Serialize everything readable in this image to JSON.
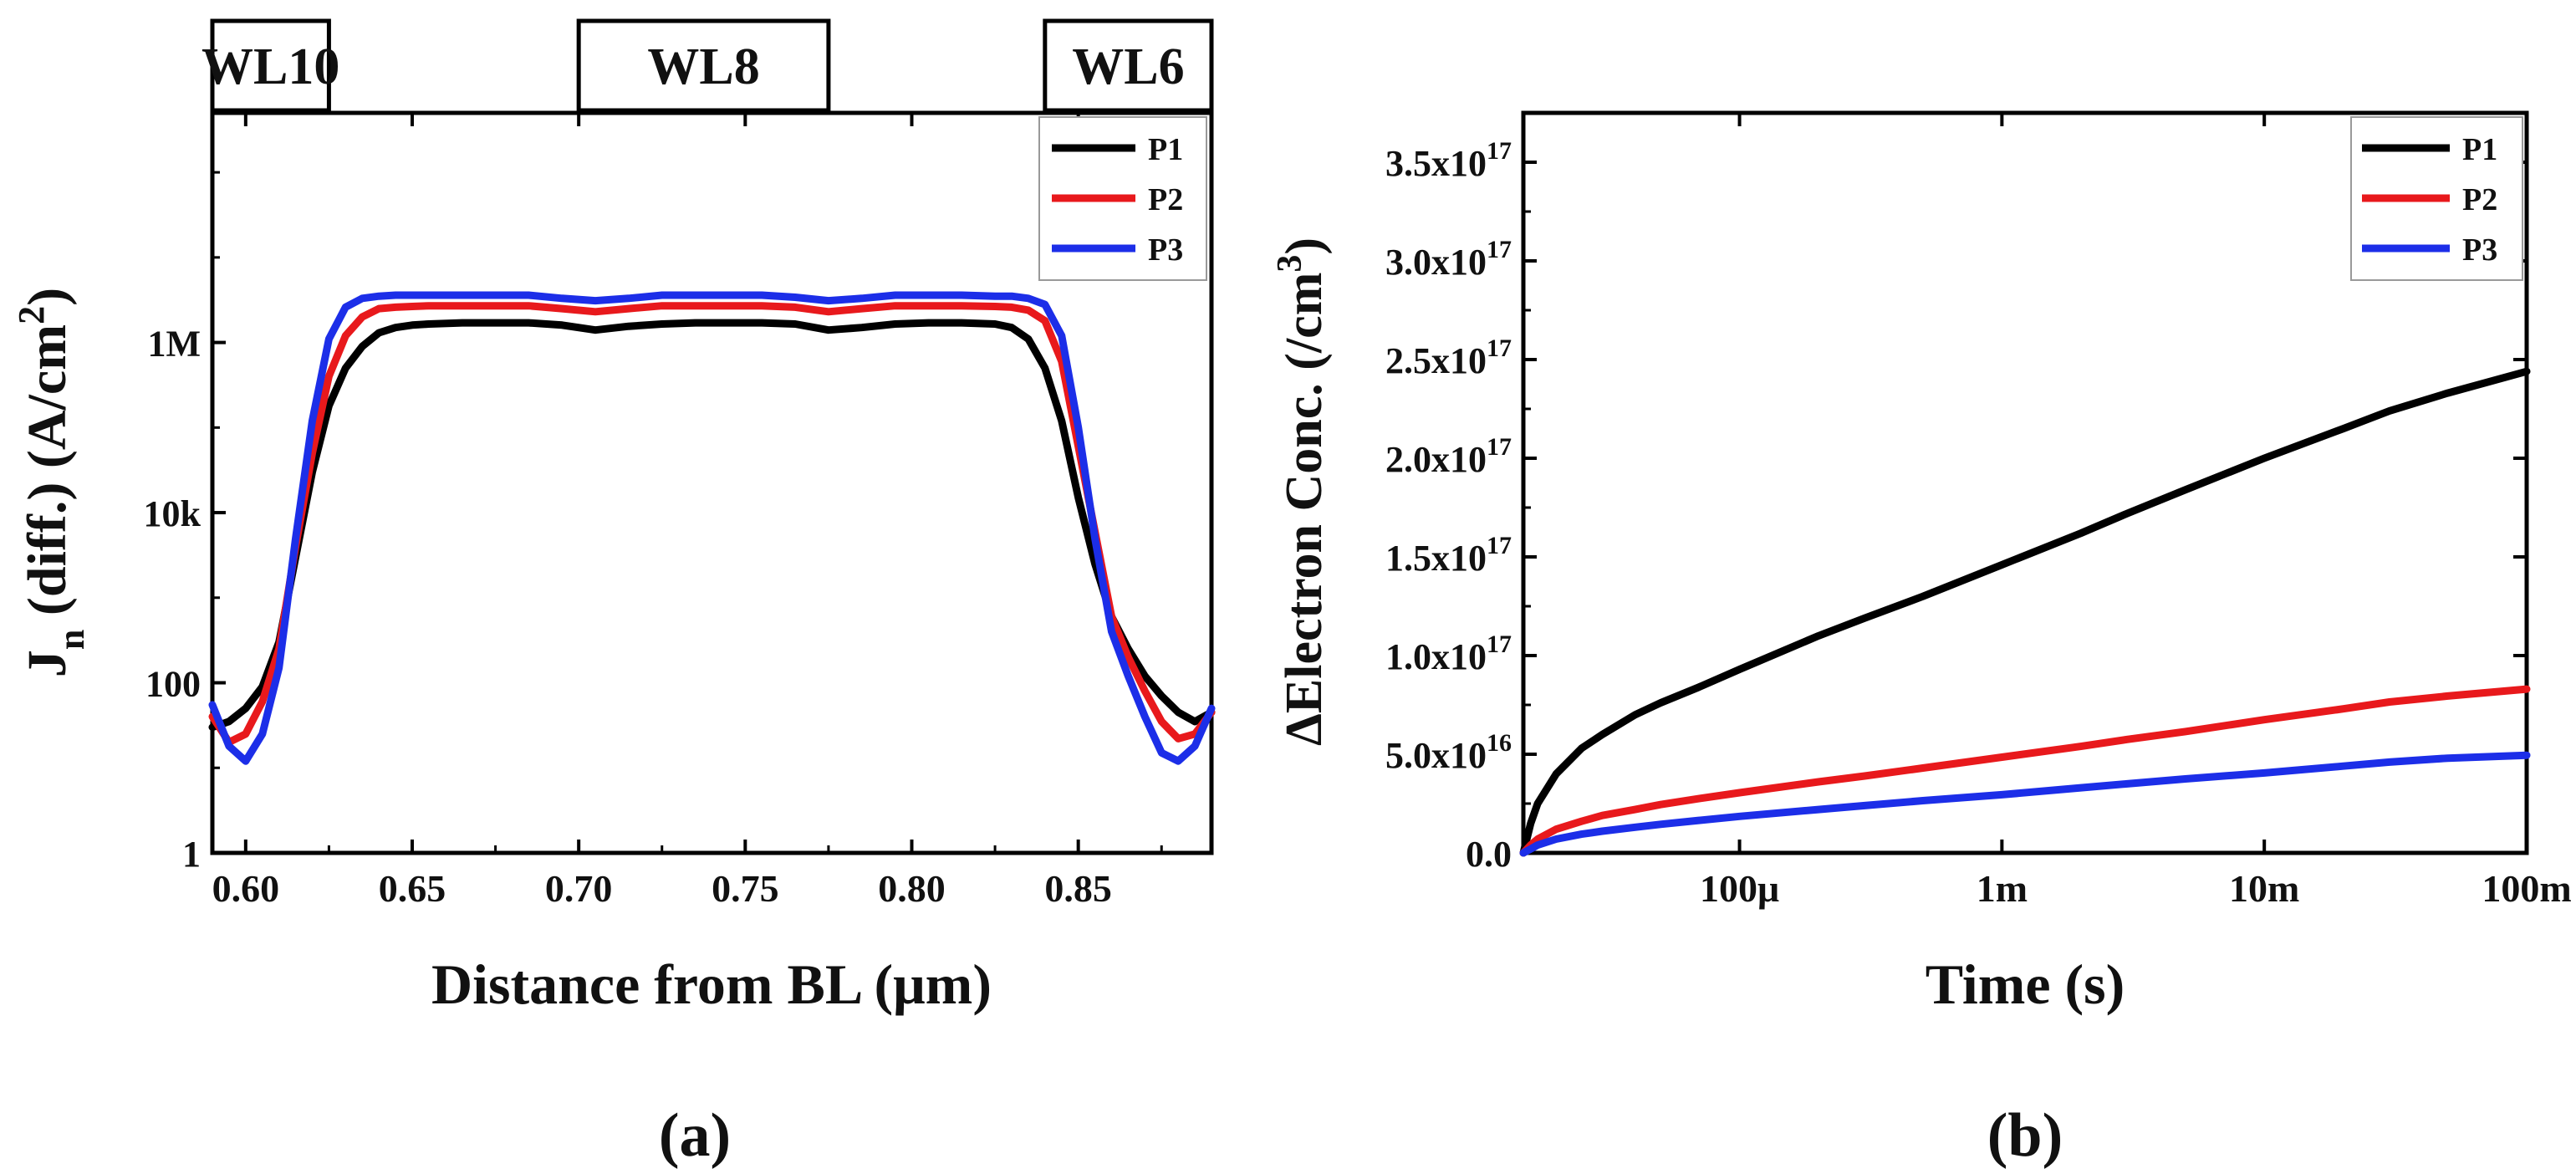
{
  "figure": {
    "panels": [
      "(a)",
      "(b)"
    ]
  },
  "chart_data": [
    {
      "type": "line",
      "panel_label": "(a)",
      "xlabel": "Distance from BL (μm)",
      "ylabel_main": "J",
      "ylabel_sub": "n",
      "ylabel_rest": " (diff.) (A/cm",
      "ylabel_sup": "2",
      "ylabel_close": ")",
      "xlim": [
        0.59,
        0.89
      ],
      "ylim": [
        1,
        500000000
      ],
      "yscale": "log",
      "xticks": [
        0.6,
        0.65,
        0.7,
        0.75,
        0.8,
        0.85
      ],
      "xtick_labels": [
        "0.60",
        "0.65",
        "0.70",
        "0.75",
        "0.80",
        "0.85"
      ],
      "yticks": [
        1,
        100,
        10000,
        1000000
      ],
      "ytick_labels": [
        "1",
        "100",
        "10k",
        "1M"
      ],
      "grid": false,
      "legend_position": "top-right",
      "wordline_labels": [
        {
          "label": "WL10",
          "x_from": 0.59,
          "x_to": 0.625
        },
        {
          "label": "WL8",
          "x_from": 0.7,
          "x_to": 0.775
        },
        {
          "label": "WL6",
          "x_from": 0.84,
          "x_to": 0.89
        }
      ],
      "series": [
        {
          "name": "P1",
          "color": "#000000",
          "x": [
            0.59,
            0.595,
            0.6,
            0.605,
            0.61,
            0.615,
            0.62,
            0.625,
            0.63,
            0.635,
            0.64,
            0.645,
            0.65,
            0.655,
            0.665,
            0.675,
            0.685,
            0.695,
            0.705,
            0.715,
            0.725,
            0.735,
            0.745,
            0.755,
            0.765,
            0.775,
            0.785,
            0.795,
            0.805,
            0.815,
            0.825,
            0.83,
            0.835,
            0.84,
            0.845,
            0.85,
            0.855,
            0.86,
            0.865,
            0.87,
            0.875,
            0.88,
            0.885,
            0.89
          ],
          "y": [
            30,
            35,
            50,
            90,
            300,
            3000,
            30000,
            180000,
            500000,
            900000,
            1300000,
            1500000,
            1600000,
            1650000,
            1700000,
            1700000,
            1700000,
            1600000,
            1400000,
            1550000,
            1650000,
            1700000,
            1700000,
            1700000,
            1650000,
            1400000,
            1500000,
            1650000,
            1700000,
            1700000,
            1650000,
            1500000,
            1100000,
            500000,
            120000,
            15000,
            2500,
            600,
            250,
            120,
            70,
            45,
            35,
            45
          ]
        },
        {
          "name": "P2",
          "color": "#e8191c",
          "x": [
            0.59,
            0.595,
            0.6,
            0.605,
            0.61,
            0.615,
            0.62,
            0.625,
            0.63,
            0.635,
            0.64,
            0.645,
            0.65,
            0.655,
            0.665,
            0.675,
            0.685,
            0.695,
            0.705,
            0.715,
            0.725,
            0.735,
            0.745,
            0.755,
            0.765,
            0.775,
            0.785,
            0.795,
            0.805,
            0.815,
            0.825,
            0.83,
            0.835,
            0.84,
            0.845,
            0.85,
            0.855,
            0.86,
            0.865,
            0.87,
            0.875,
            0.88,
            0.885,
            0.89
          ],
          "y": [
            40,
            20,
            25,
            60,
            250,
            4000,
            50000,
            400000,
            1200000,
            2000000,
            2500000,
            2600000,
            2650000,
            2700000,
            2700000,
            2700000,
            2700000,
            2500000,
            2300000,
            2500000,
            2700000,
            2700000,
            2700000,
            2700000,
            2600000,
            2300000,
            2500000,
            2700000,
            2700000,
            2700000,
            2650000,
            2600000,
            2400000,
            1800000,
            600000,
            60000,
            6000,
            600,
            200,
            80,
            35,
            22,
            25,
            45
          ]
        },
        {
          "name": "P3",
          "color": "#1c2ee8",
          "x": [
            0.59,
            0.595,
            0.6,
            0.605,
            0.61,
            0.615,
            0.62,
            0.625,
            0.63,
            0.635,
            0.64,
            0.645,
            0.65,
            0.655,
            0.665,
            0.675,
            0.685,
            0.695,
            0.705,
            0.715,
            0.725,
            0.735,
            0.745,
            0.755,
            0.765,
            0.775,
            0.785,
            0.795,
            0.805,
            0.815,
            0.825,
            0.83,
            0.835,
            0.84,
            0.845,
            0.85,
            0.855,
            0.86,
            0.865,
            0.87,
            0.875,
            0.88,
            0.885,
            0.89
          ],
          "y": [
            55,
            18,
            12,
            25,
            150,
            5000,
            120000,
            1100000,
            2600000,
            3300000,
            3500000,
            3600000,
            3600000,
            3600000,
            3600000,
            3600000,
            3600000,
            3300000,
            3100000,
            3300000,
            3600000,
            3600000,
            3600000,
            3600000,
            3400000,
            3100000,
            3300000,
            3600000,
            3600000,
            3600000,
            3500000,
            3500000,
            3300000,
            2800000,
            1200000,
            100000,
            5000,
            400,
            120,
            40,
            15,
            12,
            18,
            50
          ]
        }
      ]
    },
    {
      "type": "line",
      "panel_label": "(b)",
      "xlabel": "Time (s)",
      "ylabel_main": "ΔElectron Conc. (/cm",
      "ylabel_sup": "3",
      "ylabel_close": ")",
      "xscale": "log",
      "xlim": [
        1.5e-05,
        0.1
      ],
      "ylim": [
        0,
        3.75e+17
      ],
      "xticks": [
        0.0001,
        0.001,
        0.01,
        0.1
      ],
      "xtick_labels": [
        "100μ",
        "1m",
        "10m",
        "100m"
      ],
      "yticks": [
        0,
        5e+16,
        1e+17,
        1.5e+17,
        2e+17,
        2.5e+17,
        3e+17,
        3.5e+17
      ],
      "ytick_labels": [
        {
          "base": "0.0",
          "exp": ""
        },
        {
          "base": "5.0x10",
          "exp": "16"
        },
        {
          "base": "1.0x10",
          "exp": "17"
        },
        {
          "base": "1.5x10",
          "exp": "17"
        },
        {
          "base": "2.0x10",
          "exp": "17"
        },
        {
          "base": "2.5x10",
          "exp": "17"
        },
        {
          "base": "3.0x10",
          "exp": "17"
        },
        {
          "base": "3.5x10",
          "exp": "17"
        }
      ],
      "grid": false,
      "legend_position": "top-right",
      "series": [
        {
          "name": "P1",
          "color": "#000000",
          "x": [
            1.5e-05,
            1.6e-05,
            1.7e-05,
            2e-05,
            2.5e-05,
            3e-05,
            4e-05,
            5e-05,
            7e-05,
            0.0001,
            0.0002,
            0.0003,
            0.0005,
            0.001,
            0.002,
            0.003,
            0.005,
            0.01,
            0.02,
            0.03,
            0.05,
            0.1
          ],
          "y": [
            0,
            1.5e+16,
            2.5e+16,
            4e+16,
            5.3e+16,
            6e+16,
            7e+16,
            7.6e+16,
            8.4e+16,
            9.3e+16,
            1.1e+17,
            1.19e+17,
            1.3e+17,
            1.46e+17,
            1.62e+17,
            1.72e+17,
            1.84e+17,
            2e+17,
            2.15e+17,
            2.24e+17,
            2.33e+17,
            2.44e+17
          ]
        },
        {
          "name": "P2",
          "color": "#e8191c",
          "x": [
            1.5e-05,
            1.6e-05,
            1.7e-05,
            2e-05,
            2.5e-05,
            3e-05,
            4e-05,
            5e-05,
            7e-05,
            0.0001,
            0.0002,
            0.0003,
            0.0005,
            0.001,
            0.002,
            0.003,
            0.005,
            0.01,
            0.02,
            0.03,
            0.05,
            0.1
          ],
          "y": [
            0,
            4000000000000000.0,
            7000000000000000.0,
            1.2e+16,
            1.6e+16,
            1.9e+16,
            2.2e+16,
            2.45e+16,
            2.75e+16,
            3.05e+16,
            3.6e+16,
            3.9e+16,
            4.3e+16,
            4.85e+16,
            5.4e+16,
            5.75e+16,
            6.15e+16,
            6.75e+16,
            7.3e+16,
            7.65e+16,
            7.95e+16,
            8.3e+16
          ]
        },
        {
          "name": "P3",
          "color": "#1c2ee8",
          "x": [
            1.5e-05,
            1.6e-05,
            1.7e-05,
            2e-05,
            2.5e-05,
            3e-05,
            4e-05,
            5e-05,
            7e-05,
            0.0001,
            0.0002,
            0.0003,
            0.0005,
            0.001,
            0.002,
            0.003,
            0.005,
            0.01,
            0.02,
            0.03,
            0.05,
            0.1
          ],
          "y": [
            0,
            2000000000000000.0,
            4000000000000000.0,
            7000000000000000.0,
            9500000000000000.0,
            1.1e+16,
            1.3e+16,
            1.45e+16,
            1.65e+16,
            1.85e+16,
            2.2e+16,
            2.4e+16,
            2.65e+16,
            2.95e+16,
            3.3e+16,
            3.5e+16,
            3.75e+16,
            4.05e+16,
            4.4e+16,
            4.6e+16,
            4.8e+16,
            4.95e+16
          ]
        }
      ]
    }
  ]
}
